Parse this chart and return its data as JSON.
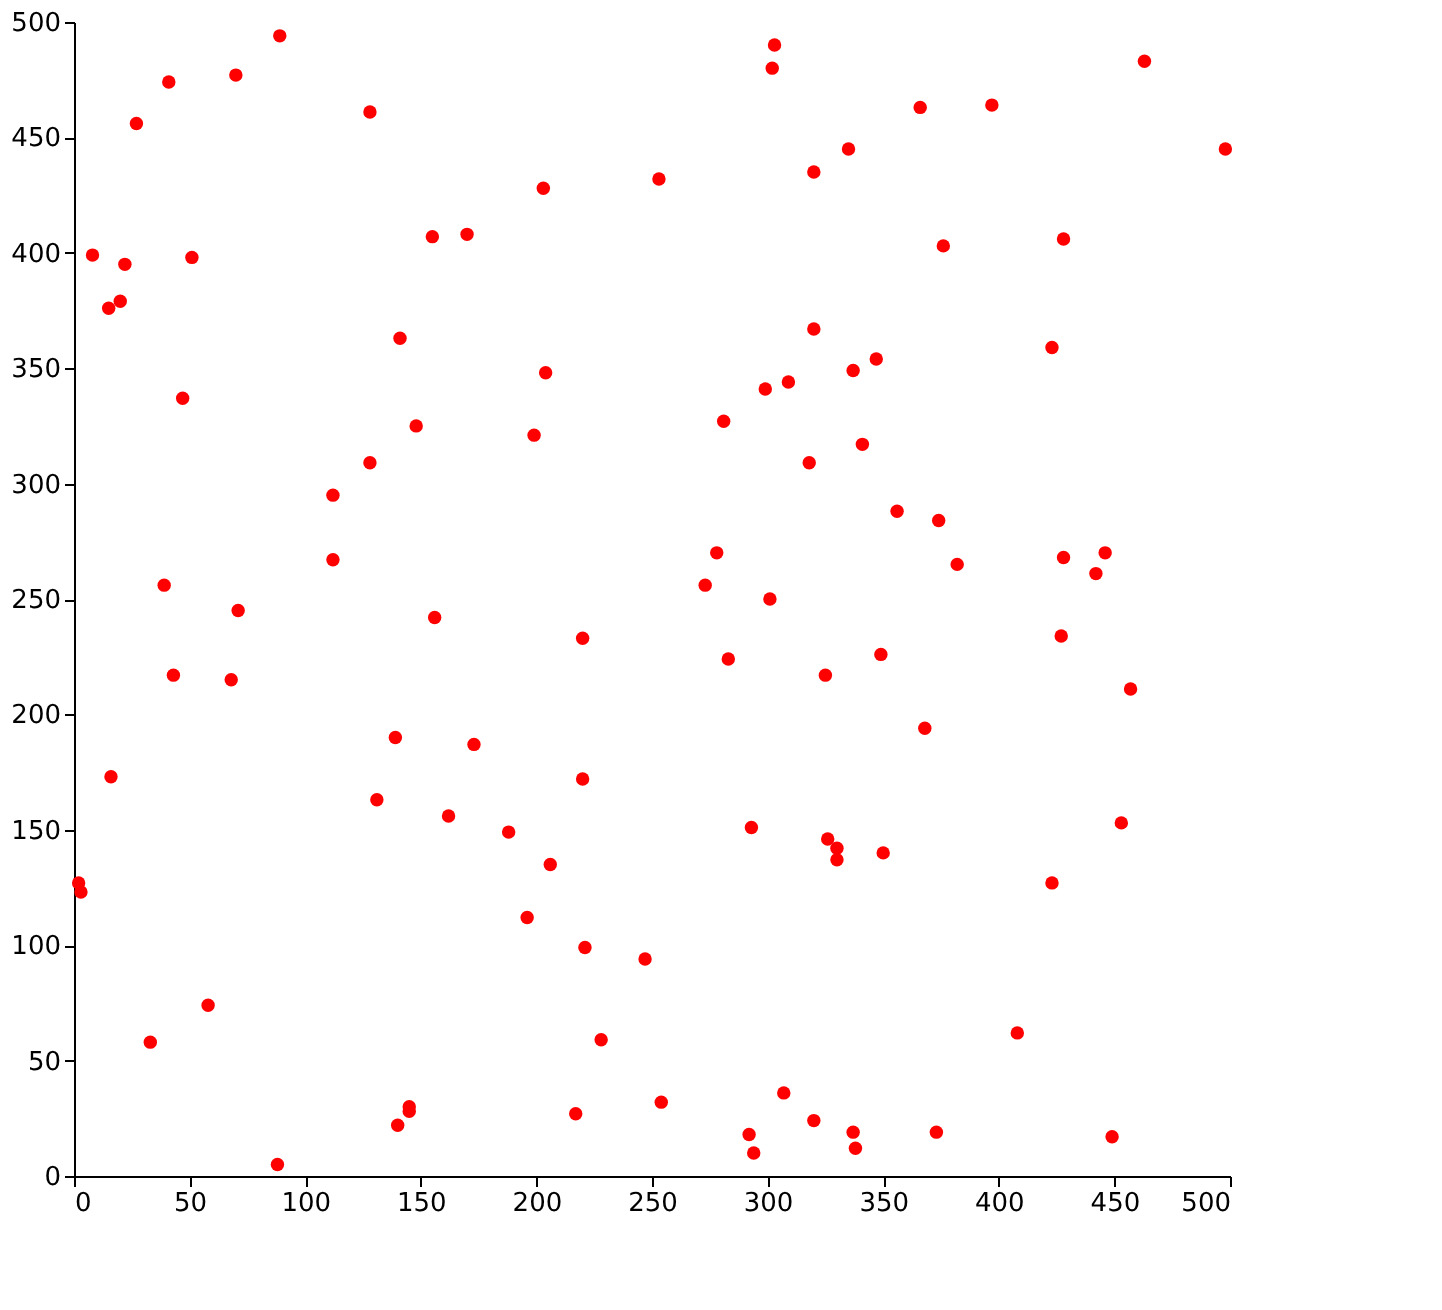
{
  "chart_data": {
    "type": "scatter",
    "marker": "circle",
    "grid": false,
    "legend": false,
    "xlim": [
      0,
      500
    ],
    "ylim": [
      0,
      500
    ],
    "xticks": [
      0,
      50,
      100,
      150,
      200,
      250,
      300,
      350,
      400,
      450,
      500
    ],
    "yticks": [
      0,
      50,
      100,
      150,
      200,
      250,
      300,
      350,
      400,
      450,
      500
    ],
    "series": [
      {
        "color": "#ff0000",
        "x": [
          8,
          22,
          15,
          20,
          41,
          27,
          51,
          70,
          89,
          128,
          47,
          141,
          148,
          128,
          155,
          170,
          203,
          253,
          303,
          302,
          320,
          335,
          366,
          397,
          463,
          498,
          376,
          428,
          423,
          320,
          347,
          337,
          309,
          299,
          281,
          204,
          199,
          341,
          318,
          356,
          374,
          382,
          428,
          446,
          442,
          427,
          457,
          368,
          453,
          423,
          408,
          449,
          373,
          337,
          338,
          320,
          307,
          292,
          294,
          254,
          217,
          228,
          247,
          221,
          196,
          206,
          188,
          162,
          131,
          173,
          139,
          156,
          220,
          220,
          273,
          278,
          283,
          301,
          325,
          349,
          293,
          326,
          330,
          330,
          350,
          112,
          112,
          39,
          71,
          43,
          68,
          16,
          2,
          3,
          33,
          58,
          88,
          140,
          145,
          145
        ],
        "values": [
          399,
          395,
          376,
          379,
          474,
          456,
          398,
          477,
          494,
          461,
          337,
          363,
          325,
          309,
          407,
          408,
          428,
          432,
          490,
          480,
          435,
          445,
          463,
          464,
          483,
          445,
          403,
          406,
          359,
          367,
          354,
          349,
          344,
          341,
          327,
          348,
          321,
          317,
          309,
          288,
          284,
          265,
          268,
          270,
          261,
          234,
          211,
          194,
          153,
          127,
          62,
          17,
          19,
          19,
          12,
          24,
          36,
          18,
          10,
          32,
          27,
          59,
          94,
          99,
          112,
          135,
          149,
          156,
          163,
          187,
          190,
          242,
          233,
          172,
          256,
          270,
          224,
          250,
          217,
          226,
          151,
          146,
          142,
          137,
          140,
          295,
          267,
          256,
          245,
          217,
          215,
          173,
          127,
          123,
          58,
          74,
          5,
          22,
          30,
          28
        ]
      }
    ]
  }
}
